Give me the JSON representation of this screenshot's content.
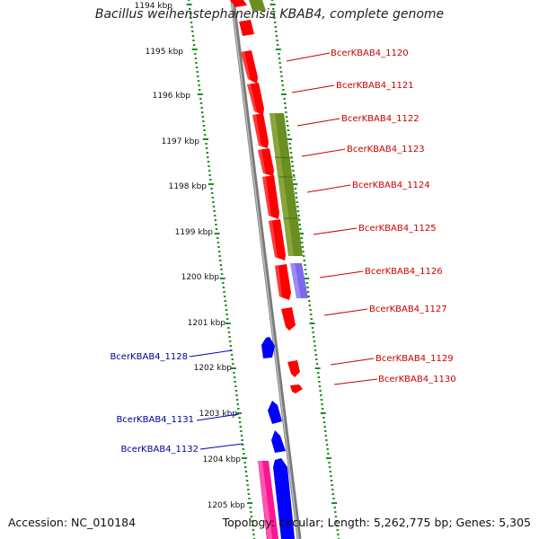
{
  "title": "Bacillus weihenstephanensis KBAB4, complete genome",
  "accession_text": "Accession: NC_010184",
  "summary_text": "Topology: circular; Length: 5,262,775 bp; Genes: 5,305",
  "colors": {
    "backbone": "#8a8a8a",
    "tick": "#228b22",
    "forward_gene": "#ff0000",
    "reverse_gene": "#0000ff",
    "green_feature": "#6b8e23",
    "purple_feature": "#7b68ee",
    "pink_feature": "#ff1493",
    "label_red": "#cc0000",
    "label_blue": "#000099"
  },
  "ruler_labels": [
    "1194 kbp",
    "1195 kbp",
    "1196 kbp",
    "1197 kbp",
    "1198 kbp",
    "1199 kbp",
    "1200 kbp",
    "1201 kbp",
    "1202 kbp",
    "1203 kbp",
    "1204 kbp",
    "1205 kbp"
  ],
  "gene_labels_right": [
    "BcerKBAB4_1120",
    "BcerKBAB4_1121",
    "BcerKBAB4_1122",
    "BcerKBAB4_1123",
    "BcerKBAB4_1124",
    "BcerKBAB4_1125",
    "BcerKBAB4_1126",
    "BcerKBAB4_1127",
    "BcerKBAB4_1129",
    "BcerKBAB4_1130"
  ],
  "gene_labels_left": [
    "BcerKBAB4_1128",
    "BcerKBAB4_1131",
    "BcerKBAB4_1132"
  ]
}
